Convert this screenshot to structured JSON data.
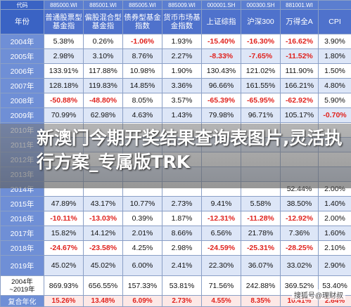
{
  "codes": [
    "代码",
    "885000.WI",
    "885001.WI",
    "885005.WI",
    "885009.WI",
    "000001.SH",
    "000300.SH",
    "881001.WI",
    ""
  ],
  "headers": [
    "年份",
    "普通股票型基金指",
    "偏股混合型基金指",
    "债券型基金指数",
    "货币市场基金指数",
    "上证综指",
    "沪深300",
    "万得全A",
    "CPI"
  ],
  "rows": [
    [
      "2004年",
      "5.38%",
      "0.26%",
      "-1.06%",
      "1.93%",
      "-15.40%",
      "-16.30%",
      "-16.62%",
      "3.90%"
    ],
    [
      "2005年",
      "2.98%",
      "3.10%",
      "8.76%",
      "2.27%",
      "-8.33%",
      "-7.65%",
      "-11.52%",
      "1.80%"
    ],
    [
      "2006年",
      "133.91%",
      "117.88%",
      "10.98%",
      "1.90%",
      "130.43%",
      "121.02%",
      "111.90%",
      "1.50%"
    ],
    [
      "2007年",
      "128.18%",
      "119.83%",
      "14.85%",
      "3.36%",
      "96.66%",
      "161.55%",
      "166.21%",
      "4.80%"
    ],
    [
      "2008年",
      "-50.88%",
      "-48.80%",
      "8.05%",
      "3.57%",
      "-65.39%",
      "-65.95%",
      "-62.92%",
      "5.90%"
    ],
    [
      "2009年",
      "70.99%",
      "62.98%",
      "4.63%",
      "1.43%",
      "79.98%",
      "96.71%",
      "105.17%",
      "-0.70%"
    ],
    [
      "2010年",
      "",
      "",
      "",
      "",
      "",
      "",
      "",
      ""
    ],
    [
      "2011年",
      "",
      "",
      "",
      "",
      "",
      "",
      "",
      ""
    ],
    [
      "2012年",
      "",
      "",
      "",
      "",
      "",
      "",
      "",
      ""
    ],
    [
      "2013年",
      "",
      "",
      "",
      "",
      "",
      "",
      "",
      ""
    ],
    [
      "2014年",
      "",
      "",
      "",
      "",
      "",
      "",
      "52.44%",
      "2.00%"
    ],
    [
      "2015年",
      "47.89%",
      "43.17%",
      "10.77%",
      "2.73%",
      "9.41%",
      "5.58%",
      "38.50%",
      "1.40%"
    ],
    [
      "2016年",
      "-10.11%",
      "-13.03%",
      "0.39%",
      "1.87%",
      "-12.31%",
      "-11.28%",
      "-12.92%",
      "2.00%"
    ],
    [
      "2017年",
      "15.82%",
      "14.12%",
      "2.01%",
      "8.66%",
      "6.56%",
      "21.78%",
      "7.36%",
      "1.60%"
    ],
    [
      "2018年",
      "-24.67%",
      "-23.58%",
      "4.25%",
      "2.98%",
      "-24.59%",
      "-25.31%",
      "-28.25%",
      "2.10%"
    ],
    [
      "2019年",
      "45.02%",
      "45.02%",
      "6.00%",
      "2.41%",
      "22.30%",
      "36.07%",
      "33.02%",
      "2.90%"
    ],
    [
      "2004年\n~2019年",
      "869.93%",
      "656.55%",
      "157.33%",
      "53.81%",
      "71.56%",
      "242.88%",
      "369.52%",
      "53.40%"
    ],
    [
      "复合年化",
      "15.26%",
      "13.48%",
      "6.09%",
      "2.73%",
      "4.55%",
      "8.35%",
      "10.41%",
      "2.64%"
    ]
  ],
  "banner": "新澳门今期开奖结果查询表图片,灵活执行方案_专属版TRK",
  "watermark": "搜狐号@理财叔"
}
